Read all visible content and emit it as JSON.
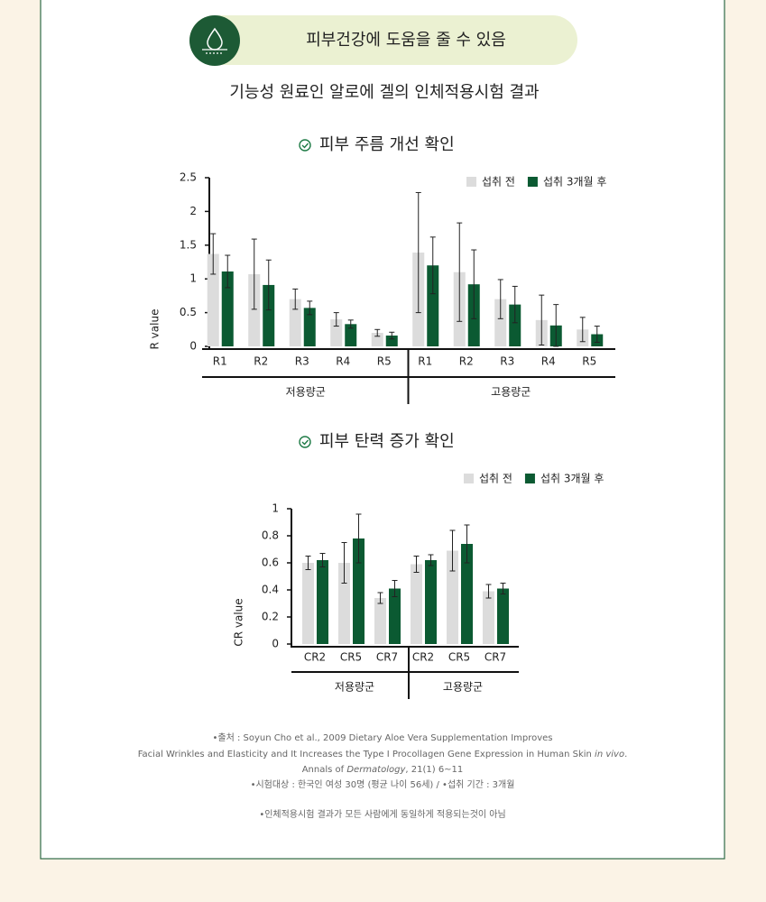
{
  "header": {
    "title": "피부건강에 도움을 줄 수 있음",
    "subtitle": "기능성 원료인 알로에 겔의 인체적용시험 결과"
  },
  "chart_data": [
    {
      "type": "bar",
      "title": "피부 주름 개선 확인",
      "y_label": "R value",
      "categories": [
        "R1",
        "R2",
        "R3",
        "R4",
        "R5",
        "R1",
        "R2",
        "R3",
        "R4",
        "R5"
      ],
      "groups": [
        "저용량군",
        "고용량군"
      ],
      "series": [
        {
          "name": "섭취 전",
          "color": "#dcdcdc",
          "values": [
            1.37,
            1.07,
            0.7,
            0.4,
            0.2,
            1.39,
            1.1,
            0.7,
            0.39,
            0.25
          ],
          "errors": [
            0.3,
            0.52,
            0.15,
            0.1,
            0.05,
            0.89,
            0.73,
            0.29,
            0.37,
            0.18
          ]
        },
        {
          "name": "섭취 3개월 후",
          "color": "#0b5a32",
          "values": [
            1.11,
            0.91,
            0.57,
            0.33,
            0.16,
            1.2,
            0.92,
            0.62,
            0.31,
            0.18
          ],
          "errors": [
            0.24,
            0.37,
            0.1,
            0.06,
            0.05,
            0.42,
            0.51,
            0.27,
            0.31,
            0.12
          ]
        }
      ],
      "ylim": [
        0,
        2.5
      ],
      "yticks": [
        0,
        0.5,
        1,
        1.5,
        2,
        2.5
      ],
      "legend": "top-right"
    },
    {
      "type": "bar",
      "title": "피부 탄력 증가 확인",
      "y_label": "CR value",
      "categories": [
        "CR2",
        "CR5",
        "CR7",
        "CR2",
        "CR5",
        "CR7"
      ],
      "groups": [
        "저용량군",
        "고용량군"
      ],
      "series": [
        {
          "name": "섭취 전",
          "color": "#dcdcdc",
          "values": [
            0.6,
            0.6,
            0.34,
            0.59,
            0.69,
            0.39
          ],
          "errors": [
            0.05,
            0.15,
            0.04,
            0.06,
            0.15,
            0.05
          ]
        },
        {
          "name": "섭취 3개월 후",
          "color": "#0b5a32",
          "values": [
            0.62,
            0.78,
            0.41,
            0.62,
            0.74,
            0.41
          ],
          "errors": [
            0.05,
            0.18,
            0.06,
            0.04,
            0.14,
            0.04
          ]
        }
      ],
      "ylim": [
        0,
        1
      ],
      "yticks": [
        0,
        0.2,
        0.4,
        0.6,
        0.8,
        1
      ],
      "legend": "top-right"
    }
  ],
  "notes": {
    "source_1": "•출처 : Soyun Cho et al., 2009 Dietary Aloe Vera Supplementation Improves",
    "source_2": [
      "Facial Wrinkles and Elasticity and It Increases the Type I Procollagen Gene Expression in Human Skin ",
      "in vivo",
      "."
    ],
    "source_3": [
      "Annals of ",
      "Dermatology",
      ", 21(1) 6~11"
    ],
    "subjects": "•시험대상 : 한국인 여성 30명 (평균 나이 56세) / •섭취 기간 : 3개월",
    "disclaimer": "•인체적용시험 결과가 모든 사람에게 동일하게 적용되는것이 아님"
  }
}
